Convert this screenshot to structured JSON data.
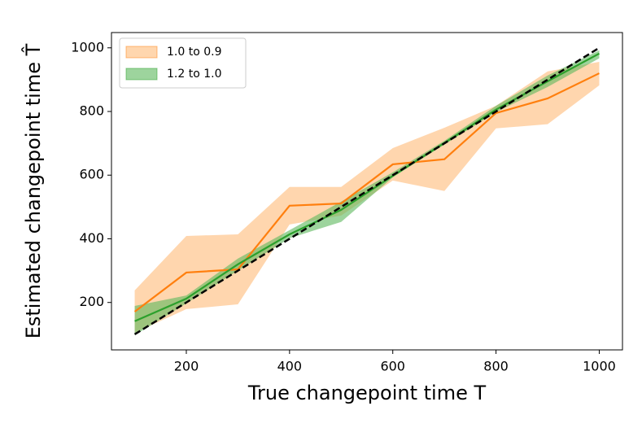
{
  "chart_data": {
    "type": "line_band",
    "xlabel": "True changepoint time T",
    "ylabel": "Estimated changepoint time T̂",
    "x": [
      100,
      200,
      300,
      400,
      500,
      600,
      700,
      800,
      900,
      1000
    ],
    "series": [
      {
        "name": "1.0 to 0.9",
        "color": "#ff7f0e",
        "band_color": "#ffbb78",
        "values": [
          171,
          294,
          304,
          504,
          511,
          634,
          650,
          795,
          841,
          920
        ],
        "upper": [
          238,
          409,
          414,
          563,
          563,
          685,
          749,
          818,
          926,
          956
        ],
        "lower": [
          105,
          179,
          194,
          445,
          473,
          583,
          550,
          747,
          760,
          882
        ]
      },
      {
        "name": "1.2 to 1.0",
        "color": "#2ca02c",
        "band_color": "#5cb85c",
        "values": [
          141,
          212,
          320,
          414,
          491,
          598,
          701,
          806,
          895,
          982
        ],
        "upper": [
          189,
          222,
          338,
          427,
          517,
          609,
          708,
          818,
          913,
          992
        ],
        "lower": [
          97,
          197,
          300,
          402,
          453,
          593,
          696,
          798,
          877,
          967
        ]
      }
    ],
    "reference_line": {
      "x": [
        100,
        1000
      ],
      "values": [
        100,
        1000
      ],
      "color": "#000000"
    },
    "xlim": [
      55,
      1045
    ],
    "ylim": [
      51,
      1048
    ],
    "xticks": [
      200,
      400,
      600,
      800,
      1000
    ],
    "yticks": [
      200,
      400,
      600,
      800,
      1000
    ],
    "legend": "upper left"
  }
}
